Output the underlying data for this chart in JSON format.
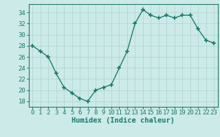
{
  "x": [
    0,
    1,
    2,
    3,
    4,
    5,
    6,
    7,
    8,
    9,
    10,
    11,
    12,
    13,
    14,
    15,
    16,
    17,
    18,
    19,
    20,
    21,
    22,
    23
  ],
  "y": [
    28,
    27,
    26,
    23,
    20.5,
    19.5,
    18.5,
    18,
    20,
    20.5,
    21,
    24,
    27,
    32,
    34.5,
    33.5,
    33,
    33.5,
    33,
    33.5,
    33.5,
    31,
    29,
    28.5
  ],
  "line_color": "#1a7a6e",
  "marker": "+",
  "marker_size": 4,
  "bg_color": "#cceae7",
  "grid_major_color": "#b0d8d4",
  "grid_minor_color": "#d6f0ee",
  "xlabel": "Humidex (Indice chaleur)",
  "ylim": [
    17,
    35.5
  ],
  "xlim": [
    -0.5,
    23.5
  ],
  "yticks": [
    18,
    20,
    22,
    24,
    26,
    28,
    30,
    32,
    34
  ],
  "xticks": [
    0,
    1,
    2,
    3,
    4,
    5,
    6,
    7,
    8,
    9,
    10,
    11,
    12,
    13,
    14,
    15,
    16,
    17,
    18,
    19,
    20,
    21,
    22,
    23
  ],
  "xlabel_fontsize": 7.5,
  "tick_fontsize": 6.5,
  "linewidth": 1.0
}
